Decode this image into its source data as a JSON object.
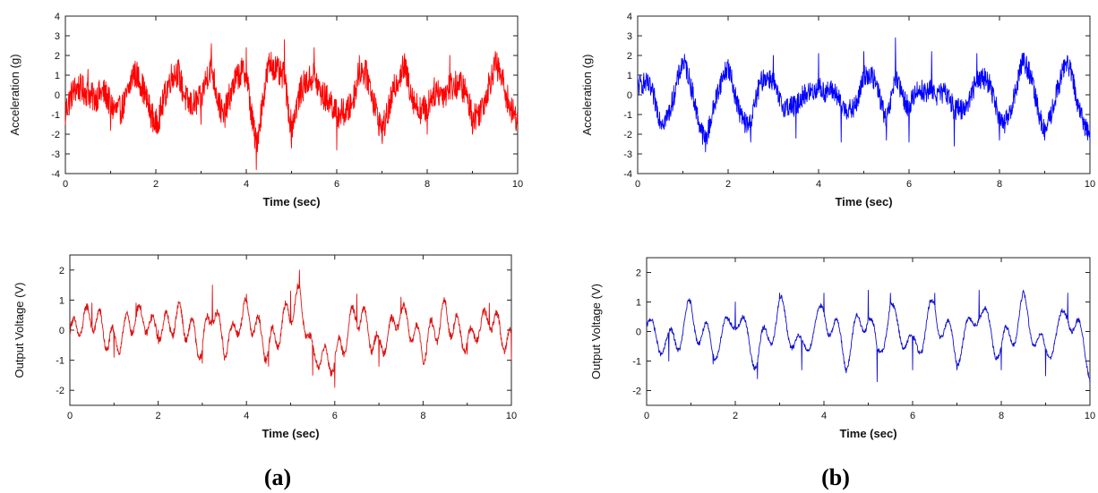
{
  "panel_labels": [
    "(a)",
    "(b)"
  ],
  "chart_data": [
    {
      "id": "a-acc",
      "type": "line",
      "xlabel": "Time (sec)",
      "ylabel": "Acceleration (g)",
      "xlim": [
        0,
        10
      ],
      "ylim": [
        -4,
        4
      ],
      "xticks": [
        0,
        2,
        4,
        6,
        8,
        10
      ],
      "yticks": [
        -4,
        -3,
        -2,
        -1,
        0,
        1,
        2,
        3,
        4
      ],
      "series": [
        {
          "color": "#ff0000",
          "period": 0.72,
          "amplitude": 0.9,
          "noise": 0.75,
          "x": [
            0,
            0.5,
            1,
            1.5,
            2,
            2.5,
            3,
            3.23,
            3.5,
            4,
            4.22,
            4.5,
            4.84,
            5,
            5.5,
            6,
            6.5,
            7,
            7.5,
            8,
            8.5,
            9,
            9.5,
            10
          ],
          "y": [
            -1.5,
            1.3,
            -1.8,
            1.5,
            -1.9,
            1.8,
            -1.5,
            2.6,
            -1.4,
            2.4,
            -3.8,
            1.6,
            2.8,
            -2.7,
            2.4,
            -2.8,
            2.0,
            -2.3,
            2.1,
            -2.0,
            2.0,
            -2.0,
            1.9,
            -1.3
          ]
        }
      ]
    },
    {
      "id": "a-volt",
      "type": "line",
      "xlabel": "Time (sec)",
      "ylabel": "Output Voltage (V)",
      "xlim": [
        0,
        10
      ],
      "ylim": [
        -2.5,
        2.5
      ],
      "xticks": [
        0,
        2,
        4,
        6,
        8,
        10
      ],
      "yticks": [
        -2,
        -1,
        0,
        1,
        2
      ],
      "series": [
        {
          "color": "#dd1111",
          "period": 0.3,
          "amplitude": 0.75,
          "noise": 0.12,
          "x": [
            0,
            0.5,
            1,
            1.5,
            2,
            2.5,
            3,
            3.23,
            3.5,
            4,
            4.5,
            5,
            5.2,
            5.5,
            6,
            6.5,
            7,
            7.5,
            8,
            8.5,
            9,
            9.5,
            10
          ],
          "y": [
            -0.1,
            0.9,
            -0.9,
            0.9,
            0,
            0.8,
            -1.1,
            1.5,
            -1.0,
            1.2,
            -1.2,
            1.3,
            2.0,
            -1.5,
            -1.9,
            1.2,
            -1.2,
            1.1,
            -1.1,
            1.0,
            -0.8,
            0.9,
            -1.0
          ]
        }
      ]
    },
    {
      "id": "b-acc",
      "type": "line",
      "xlabel": "Time (sec)",
      "ylabel": "Acceleration (g)",
      "xlim": [
        0,
        10
      ],
      "ylim": [
        -4,
        4
      ],
      "xticks": [
        0,
        2,
        4,
        6,
        8,
        10
      ],
      "yticks": [
        -4,
        -3,
        -2,
        -1,
        0,
        1,
        2,
        3,
        4
      ],
      "series": [
        {
          "color": "#0000ff",
          "period": 0.84,
          "amplitude": 1.2,
          "noise": 0.55,
          "x": [
            0,
            0.5,
            1,
            1.5,
            2,
            2.5,
            3,
            3.5,
            4,
            4.5,
            5,
            5.5,
            5.7,
            6,
            6.5,
            7,
            7.5,
            8,
            8.5,
            9,
            9.5,
            10
          ],
          "y": [
            0.8,
            -1.5,
            1.6,
            -2.9,
            1.8,
            -2.4,
            2.0,
            -2.2,
            2.1,
            -2.4,
            2.2,
            -2.3,
            2.9,
            -2.4,
            2.2,
            -2.6,
            2.1,
            -2.3,
            2.1,
            -2.3,
            2.0,
            -2.4
          ]
        }
      ]
    },
    {
      "id": "b-volt",
      "type": "line",
      "xlabel": "Time (sec)",
      "ylabel": "Output Voltage (V)",
      "xlim": [
        0,
        10
      ],
      "ylim": [
        -2.5,
        2.5
      ],
      "xticks": [
        0,
        2,
        4,
        6,
        8,
        10
      ],
      "yticks": [
        -2,
        -1,
        0,
        1,
        2
      ],
      "series": [
        {
          "color": "#1111cc",
          "period": 0.42,
          "amplitude": 0.85,
          "noise": 0.08,
          "x": [
            0,
            0.5,
            1,
            1.5,
            2,
            2.5,
            3,
            3.5,
            4,
            4.5,
            5,
            5.2,
            5.5,
            6,
            6.5,
            7,
            7.5,
            8,
            8.5,
            9,
            9.5,
            10
          ],
          "y": [
            0.3,
            -1.0,
            1.0,
            -1.1,
            1.0,
            -1.6,
            1.3,
            -1.3,
            1.3,
            -1.4,
            1.4,
            -1.7,
            1.3,
            -1.3,
            1.3,
            -1.3,
            1.4,
            -1.3,
            1.4,
            -1.5,
            1.3,
            -1.8
          ]
        }
      ]
    }
  ]
}
